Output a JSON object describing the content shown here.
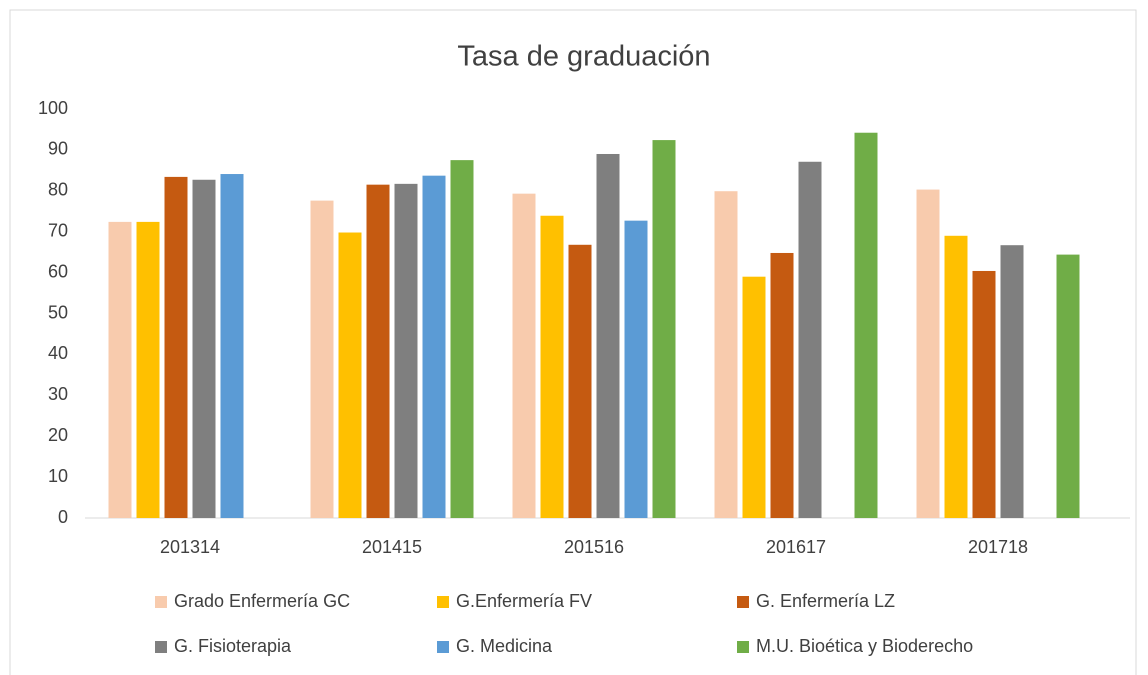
{
  "chart_data": {
    "type": "bar",
    "title": "Tasa de graduación",
    "categories": [
      "201314",
      "201415",
      "201516",
      "201617",
      "201718"
    ],
    "series": [
      {
        "name": "Grado Enfermería GC",
        "color": "#f8cbad",
        "values": [
          72.4,
          77.6,
          79.3,
          79.9,
          80.3
        ]
      },
      {
        "name": "G.Enfermería FV",
        "color": "#ffc000",
        "values": [
          72.4,
          69.8,
          73.9,
          59.0,
          69.0
        ]
      },
      {
        "name": "G. Enfermería LZ",
        "color": "#c55a11",
        "values": [
          83.4,
          81.5,
          66.8,
          64.8,
          60.4
        ]
      },
      {
        "name": "G. Fisioterapia",
        "color": "#7f7f7f",
        "values": [
          82.7,
          81.7,
          89.0,
          87.1,
          66.7
        ]
      },
      {
        "name": "G. Medicina",
        "color": "#5b9bd5",
        "values": [
          84.1,
          83.7,
          72.7,
          null,
          null
        ]
      },
      {
        "name": "M.U. Bioética y Bioderecho",
        "color": "#70ad47",
        "values": [
          null,
          87.5,
          92.4,
          94.2,
          64.4
        ]
      }
    ],
    "ylim": [
      0,
      100
    ],
    "yticks": [
      0,
      10,
      20,
      30,
      40,
      50,
      60,
      70,
      80,
      90,
      100
    ],
    "grid": false,
    "legend": "bottom"
  }
}
